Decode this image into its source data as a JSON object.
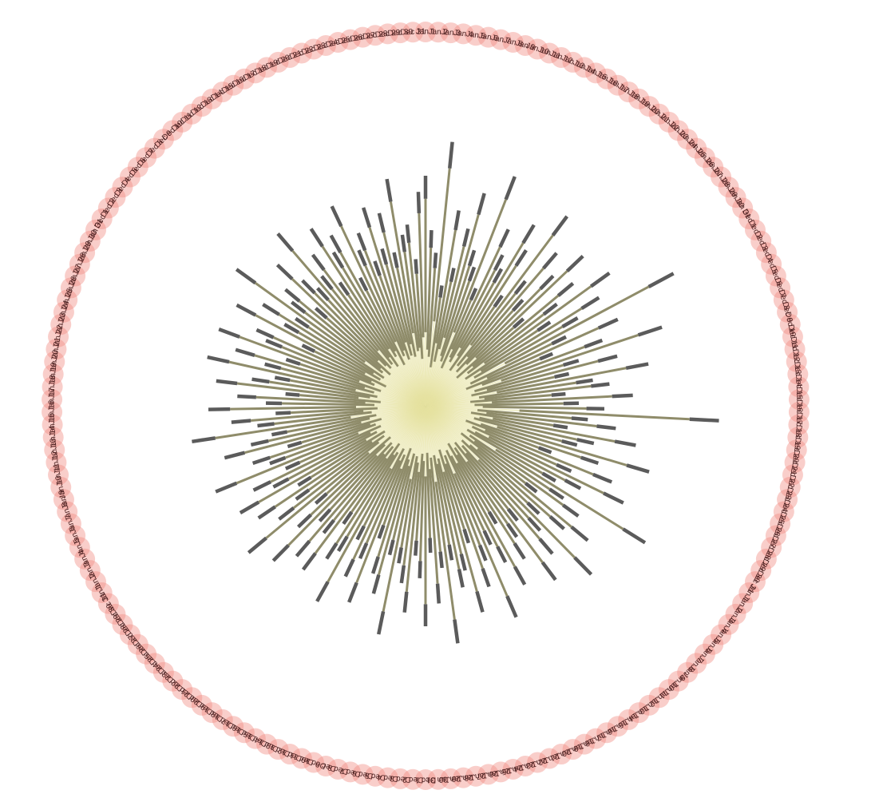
{
  "chart_data": {
    "type": "radial-bar",
    "title": "",
    "categories": [
      "Jan 1",
      "Jan 2",
      "Jan 3",
      "Jan 4",
      "Jan 5",
      "Jan 6",
      "Jan 7",
      "Jan 8",
      "Jan 9",
      "Jan 10",
      "Jan 11",
      "Jan 12",
      "Jan 13",
      "Jan 14",
      "Jan 15",
      "Jan 16",
      "Jan 17",
      "Jan 18",
      "Jan 19",
      "Jan 20",
      "Jan 21",
      "Jan 22",
      "Jan 23",
      "Jan 24",
      "Jan 25",
      "Jan 26",
      "Jan 27",
      "Jan 28",
      "Jan 29",
      "Jan 30",
      "Jan 31",
      "Dec 1",
      "Dec 2",
      "Dec 3",
      "Dec 4",
      "Dec 5",
      "Dec 6",
      "Dec 7",
      "Dec 8",
      "Dec 9",
      "Dec 10",
      "Dec 11",
      "Dec 12",
      "Dec 13",
      "Dec 14",
      "Dec 15",
      "Dec 16",
      "Dec 17",
      "Dec 18",
      "Dec 19",
      "Dec 20",
      "Dec 21",
      "Dec 22",
      "Dec 23",
      "Dec 24",
      "Dec 25",
      "Dec 26",
      "Dec 27",
      "Dec 28",
      "Dec 29",
      "Dec 30",
      "Dec 31",
      "Jan 1",
      "Jan 2",
      "Jan 3",
      "Jan 4",
      "Jan 5",
      "Jan 6",
      "Jan 7",
      "Jan 8",
      "Jan 9",
      "Jan 10",
      "Jan 11",
      "Jan 12",
      "Jan 13",
      "Jan 14",
      "Jan 15",
      "Jan 16",
      "Jan 17",
      "Jan 18",
      "Jan 19",
      "Jan 20",
      "Jan 21",
      "Jan 22",
      "Jan 23",
      "Jan 24",
      "Jan 25",
      "Jan 26",
      "Jan 27",
      "Jan 28",
      "Jan 29",
      "Jan 30",
      "Jan 31",
      "Dec 1",
      "Dec 2",
      "Dec 3",
      "Dec 4",
      "Dec 5",
      "Dec 6",
      "Dec 7",
      "Dec 8",
      "Dec 9",
      "Dec 10",
      "Dec 11",
      "Dec 12",
      "Dec 13",
      "Dec 14",
      "Dec 15",
      "Dec 16",
      "Dec 17",
      "Dec 18",
      "Dec 19",
      "Dec 20",
      "Dec 21",
      "Dec 22",
      "Dec 23",
      "Dec 24",
      "Dec 25",
      "Dec 26",
      "Dec 27",
      "Dec 28",
      "Dec 29",
      "Dec 30",
      "Dec 31",
      "Jan 1",
      "Jan 2",
      "Jan 3",
      "Jan 4",
      "Jan 5",
      "Jan 6",
      "Jan 7",
      "Jan 8",
      "Jan 9",
      "Jan 10",
      "Jan 11",
      "Jan 12",
      "Jan 13",
      "Jan 14",
      "Jan 15",
      "Jan 16",
      "Jan 17",
      "Jan 18",
      "Jan 19",
      "Jan 20",
      "Jan 21",
      "Jan 22",
      "Jan 23",
      "Jan 24",
      "Jan 25",
      "Jan 26",
      "Jan 27",
      "Jan 28",
      "Jan 29",
      "Jan 30",
      "Jan 31",
      "Dec 1",
      "Dec 2",
      "Dec 3",
      "Dec 4",
      "Dec 5",
      "Dec 6",
      "Dec 7",
      "Dec 8",
      "Dec 9",
      "Dec 10",
      "Dec 11",
      "Dec 12",
      "Dec 13",
      "Dec 14",
      "Dec 15",
      "Dec 16",
      "Dec 17",
      "Dec 18",
      "Dec 19",
      "Dec 20",
      "Dec 21",
      "Dec 22",
      "Dec 23",
      "Dec 24",
      "Dec 25",
      "Dec 26",
      "Dec 27",
      "Dec 28",
      "Dec 29",
      "Dec 30",
      "Dec 31"
    ],
    "values": [
      0.72,
      0.55,
      0.48,
      0.83,
      0.38,
      0.62,
      0.44,
      0.57,
      0.69,
      0.51,
      0.46,
      0.77,
      0.4,
      0.61,
      0.53,
      0.49,
      0.66,
      0.58,
      0.42,
      0.74,
      0.5,
      0.63,
      0.45,
      0.57,
      0.68,
      0.41,
      0.6,
      0.52,
      0.71,
      0.47,
      0.64,
      0.55,
      0.88,
      0.49,
      0.66,
      0.43,
      0.59,
      0.78,
      0.5,
      0.62,
      0.46,
      0.71,
      0.53,
      0.58,
      0.44,
      0.65,
      0.48,
      0.56,
      0.92,
      0.51,
      0.6,
      0.45,
      0.67,
      0.54,
      0.49,
      0.73,
      0.57,
      0.42,
      0.63,
      0.5,
      0.69,
      0.55,
      0.47,
      0.81,
      0.52,
      0.59,
      0.44,
      0.66,
      0.58,
      0.49,
      0.74,
      0.53,
      0.61,
      0.46,
      0.68,
      0.5,
      0.57,
      0.43,
      0.64,
      0.55,
      0.48,
      0.72,
      0.52,
      0.6,
      0.45,
      0.67,
      0.53,
      0.58,
      0.49,
      0.75,
      0.51,
      0.62,
      0.46,
      0.69,
      0.54,
      0.47,
      0.65,
      0.56,
      0.5,
      0.73,
      0.48,
      0.61,
      0.55,
      0.44,
      0.66,
      0.52,
      0.59,
      0.47,
      0.7,
      0.53,
      0.57,
      0.45,
      0.64,
      0.51,
      0.62,
      0.49,
      0.68,
      0.55,
      0.46,
      0.72,
      0.58,
      0.5,
      0.63,
      0.47,
      0.67,
      0.54,
      0.6,
      0.48,
      0.71,
      0.52,
      0.57,
      0.45,
      0.65,
      0.56,
      0.49,
      0.74,
      0.53,
      0.61,
      0.47,
      0.68,
      0.5,
      0.59,
      0.44,
      0.66,
      0.55,
      0.48,
      0.7,
      0.52,
      0.62,
      0.46,
      0.69,
      0.54,
      0.58,
      0.43,
      0.67,
      0.51,
      0.6,
      0.49,
      0.73,
      0.53,
      0.57,
      0.46,
      0.64,
      0.55,
      0.5,
      0.71,
      0.52,
      0.59,
      0.47,
      0.66,
      0.56,
      0.61,
      0.45,
      0.69,
      0.53,
      0.58,
      0.48,
      0.65,
      0.51,
      0.62,
      0.49,
      0.72,
      0.54,
      0.57,
      0.46,
      0.67
    ],
    "xlabel": "",
    "ylabel": "",
    "grid": false,
    "legend": "none"
  },
  "colors": {
    "ring": "#f08a80",
    "label": "#4a1f1f",
    "bar_inner": "#e6e2a0",
    "bar_mid": "#8f8c6a",
    "bar_outer": "#5b5b5b"
  }
}
